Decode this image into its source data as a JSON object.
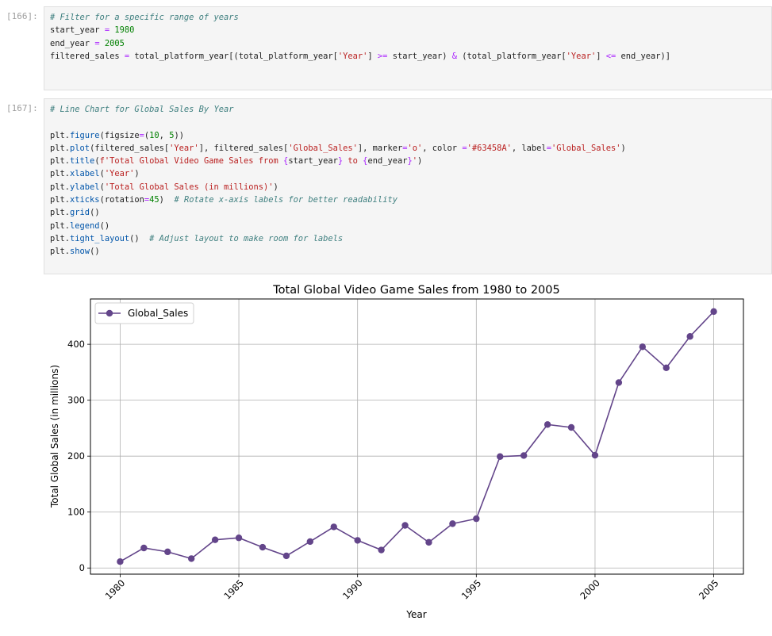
{
  "cells": [
    {
      "prompt": "[166]:",
      "lines": [
        [
          [
            "# Filter for a specific range of years",
            "cm"
          ]
        ],
        [
          [
            "start_year ",
            ""
          ],
          [
            "=",
            "op"
          ],
          [
            " ",
            ""
          ],
          [
            "1980",
            "nm"
          ]
        ],
        [
          [
            "end_year ",
            ""
          ],
          [
            "=",
            "op"
          ],
          [
            " ",
            ""
          ],
          [
            "2005",
            "nm"
          ]
        ],
        [
          [
            "filtered_sales ",
            ""
          ],
          [
            "=",
            "op"
          ],
          [
            " total_platform_year[(total_platform_year[",
            ""
          ],
          [
            "'Year'",
            "st"
          ],
          [
            "] ",
            ""
          ],
          [
            ">=",
            "op"
          ],
          [
            " start_year) ",
            ""
          ],
          [
            "&",
            "op"
          ],
          [
            " (total_platform_year[",
            ""
          ],
          [
            "'Year'",
            "st"
          ],
          [
            "] ",
            ""
          ],
          [
            "<=",
            "op"
          ],
          [
            " end_year)]",
            ""
          ]
        ]
      ]
    },
    {
      "prompt": "[167]:",
      "lines": [
        [
          [
            "# Line Chart for Global Sales By Year",
            "cm"
          ]
        ],
        [],
        [
          [
            "plt.",
            ""
          ],
          [
            "figure",
            "fn"
          ],
          [
            "(figsize",
            ""
          ],
          [
            "=",
            "op"
          ],
          [
            "(",
            ""
          ],
          [
            "10",
            "nm"
          ],
          [
            ", ",
            ""
          ],
          [
            "5",
            "nm"
          ],
          [
            "))",
            ""
          ]
        ],
        [
          [
            "plt.",
            ""
          ],
          [
            "plot",
            "fn"
          ],
          [
            "(filtered_sales[",
            ""
          ],
          [
            "'Year'",
            "st"
          ],
          [
            "], filtered_sales[",
            ""
          ],
          [
            "'Global_Sales'",
            "st"
          ],
          [
            "], marker",
            ""
          ],
          [
            "=",
            "op"
          ],
          [
            "'o'",
            "st"
          ],
          [
            ", color ",
            ""
          ],
          [
            "=",
            "op"
          ],
          [
            "'#63458A'",
            "st"
          ],
          [
            ", label",
            ""
          ],
          [
            "=",
            "op"
          ],
          [
            "'Global_Sales'",
            "st"
          ],
          [
            ")",
            ""
          ]
        ],
        [
          [
            "plt.",
            ""
          ],
          [
            "title",
            "fn"
          ],
          [
            "(",
            ""
          ],
          [
            "f'Total Global Video Game Sales from ",
            "st"
          ],
          [
            "{",
            "op"
          ],
          [
            "start_year",
            ""
          ],
          [
            "}",
            "op"
          ],
          [
            " to ",
            "st"
          ],
          [
            "{",
            "op"
          ],
          [
            "end_year",
            ""
          ],
          [
            "}",
            "op"
          ],
          [
            "'",
            "st"
          ],
          [
            ")",
            ""
          ]
        ],
        [
          [
            "plt.",
            ""
          ],
          [
            "xlabel",
            "fn"
          ],
          [
            "(",
            ""
          ],
          [
            "'Year'",
            "st"
          ],
          [
            ")",
            ""
          ]
        ],
        [
          [
            "plt.",
            ""
          ],
          [
            "ylabel",
            "fn"
          ],
          [
            "(",
            ""
          ],
          [
            "'Total Global Sales (in millions)'",
            "st"
          ],
          [
            ")",
            ""
          ]
        ],
        [
          [
            "plt.",
            ""
          ],
          [
            "xticks",
            "fn"
          ],
          [
            "(rotation",
            ""
          ],
          [
            "=",
            "op"
          ],
          [
            "45",
            "nm"
          ],
          [
            ")  ",
            ""
          ],
          [
            "# Rotate x-axis labels for better readability",
            "cm"
          ]
        ],
        [
          [
            "plt.",
            ""
          ],
          [
            "grid",
            "fn"
          ],
          [
            "()",
            ""
          ]
        ],
        [
          [
            "plt.",
            ""
          ],
          [
            "legend",
            "fn"
          ],
          [
            "()",
            ""
          ]
        ],
        [
          [
            "plt.",
            ""
          ],
          [
            "tight_layout",
            "fn"
          ],
          [
            "()  ",
            ""
          ],
          [
            "# Adjust layout to make room for labels",
            "cm"
          ]
        ],
        [
          [
            "plt.",
            ""
          ],
          [
            "show",
            "fn"
          ],
          [
            "()",
            ""
          ]
        ]
      ]
    }
  ],
  "chart_data": {
    "type": "line",
    "title": "Total Global Video Game Sales from 1980 to 2005",
    "xlabel": "Year",
    "ylabel": "Total Global Sales (in millions)",
    "x": [
      1980,
      1981,
      1982,
      1983,
      1984,
      1985,
      1986,
      1987,
      1988,
      1989,
      1990,
      1991,
      1992,
      1993,
      1994,
      1995,
      1996,
      1997,
      1998,
      1999,
      2000,
      2001,
      2002,
      2003,
      2004,
      2005
    ],
    "series": [
      {
        "name": "Global_Sales",
        "color": "#63458A",
        "marker": "o",
        "values": [
          11.4,
          35.8,
          28.9,
          16.8,
          50.4,
          53.9,
          37.1,
          21.7,
          47.2,
          73.5,
          49.4,
          32.2,
          76.2,
          45.9,
          79.2,
          88.1,
          199.2,
          201.1,
          256.5,
          251.3,
          201.6,
          331.5,
          395.5,
          357.9,
          414.0,
          458.5
        ]
      }
    ],
    "xticks": [
      "1980",
      "1985",
      "1990",
      "1995",
      "2000",
      "2005"
    ],
    "yticks": [
      "0",
      "100",
      "200",
      "300",
      "400"
    ],
    "xlim": [
      1978.75,
      2006.25
    ],
    "ylim": [
      -11,
      481
    ],
    "grid": true,
    "legend": "top-left",
    "xtick_rotation": 45
  }
}
